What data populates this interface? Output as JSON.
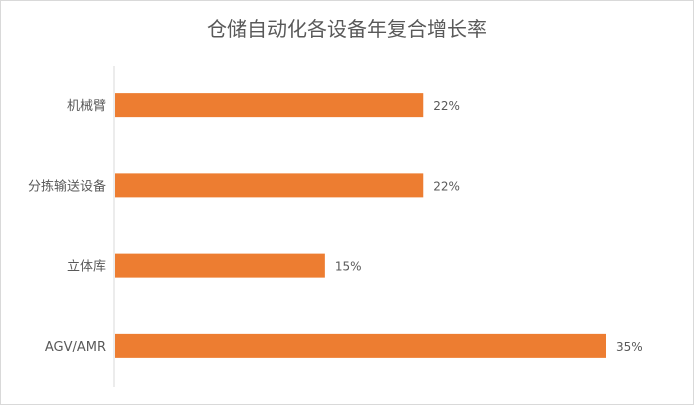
{
  "chart_data": {
    "type": "bar",
    "orientation": "horizontal",
    "title": "仓储自动化各设备年复合增长率",
    "categories": [
      "机械臂",
      "分拣输送设备",
      "立体库",
      "AGV/AMR"
    ],
    "values": [
      22,
      22,
      15,
      35
    ],
    "value_labels": [
      "22%",
      "22%",
      "15%",
      "35%"
    ],
    "unit": "%",
    "xlim": [
      0,
      35
    ],
    "grid": false,
    "legend": "none",
    "colors": {
      "bar": "#ED7D31",
      "axis": "#d9d9d9",
      "text": "#595959"
    }
  }
}
